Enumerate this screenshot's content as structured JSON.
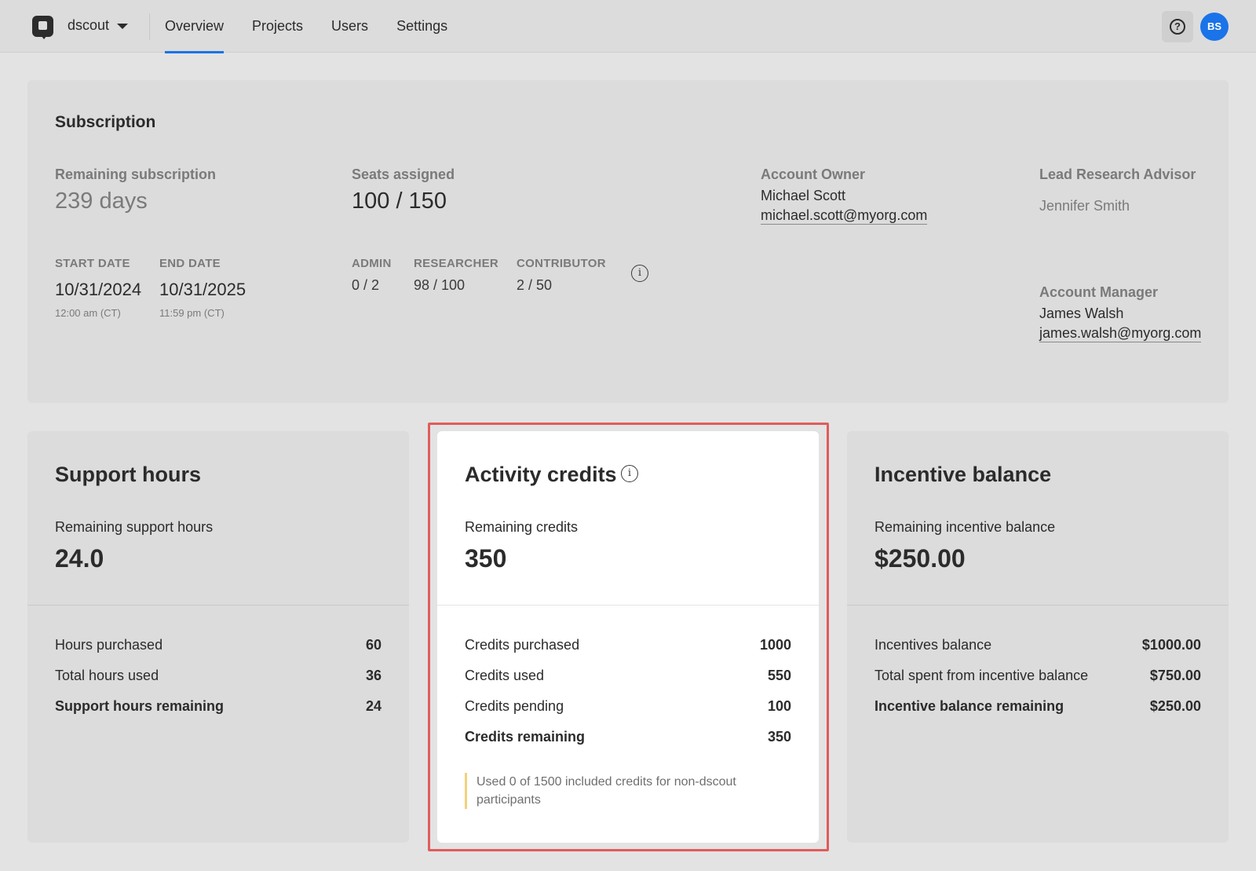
{
  "header": {
    "org_name": "dscout",
    "nav": [
      {
        "label": "Overview",
        "active": true
      },
      {
        "label": "Projects",
        "active": false
      },
      {
        "label": "Users",
        "active": false
      },
      {
        "label": "Settings",
        "active": false
      }
    ],
    "help_icon": "help-circle-icon",
    "help_glyph": "?",
    "avatar_initials": "BS",
    "avatar_color": "#1a73e8"
  },
  "subscription": {
    "title": "Subscription",
    "remaining_label": "Remaining subscription",
    "remaining_value": "239 days",
    "start_label": "START DATE",
    "start_date": "10/31/2024",
    "start_time": "12:00 am (CT)",
    "end_label": "END DATE",
    "end_date": "10/31/2025",
    "end_time": "11:59 pm (CT)",
    "seats_label": "Seats assigned",
    "seats_value": "100 / 150",
    "roles": [
      {
        "label": "ADMIN",
        "value": "0 / 2"
      },
      {
        "label": "RESEARCHER",
        "value": "98 / 100"
      },
      {
        "label": "CONTRIBUTOR",
        "value": "2 / 50"
      }
    ],
    "info_glyph": "i",
    "account_owner_label": "Account Owner",
    "account_owner_name": "Michael Scott",
    "account_owner_email": "michael.scott@myorg.com",
    "lead_advisor_label": "Lead Research Advisor",
    "lead_advisor_name": "Jennifer Smith",
    "account_manager_label": "Account Manager",
    "account_manager_name": "James Walsh",
    "account_manager_email": "james.walsh@myorg.com"
  },
  "support_hours": {
    "title": "Support hours",
    "remaining_label": "Remaining support hours",
    "remaining_value": "24.0",
    "rows": [
      {
        "label": "Hours purchased",
        "value": "60"
      },
      {
        "label": "Total hours used",
        "value": "36"
      },
      {
        "label": "Support hours remaining",
        "value": "24"
      }
    ]
  },
  "activity_credits": {
    "title": "Activity credits",
    "info_glyph": "i",
    "remaining_label": "Remaining credits",
    "remaining_value": "350",
    "rows": [
      {
        "label": "Credits purchased",
        "value": "1000"
      },
      {
        "label": "Credits used",
        "value": "550"
      },
      {
        "label": "Credits pending",
        "value": "100"
      },
      {
        "label": "Credits remaining",
        "value": "350"
      }
    ],
    "note": "Used 0 of 1500 included credits for non-dscout participants"
  },
  "incentive_balance": {
    "title": "Incentive balance",
    "remaining_label": "Remaining incentive balance",
    "remaining_value": "$250.00",
    "rows": [
      {
        "label": "Incentives balance",
        "value": "$1000.00"
      },
      {
        "label": "Total spent from incentive balance",
        "value": "$750.00"
      },
      {
        "label": "Incentive balance remaining",
        "value": "$250.00"
      }
    ]
  },
  "colors": {
    "accent": "#1a73e8",
    "highlight_border": "#e05c5c",
    "note_bar": "#f2d27a"
  }
}
